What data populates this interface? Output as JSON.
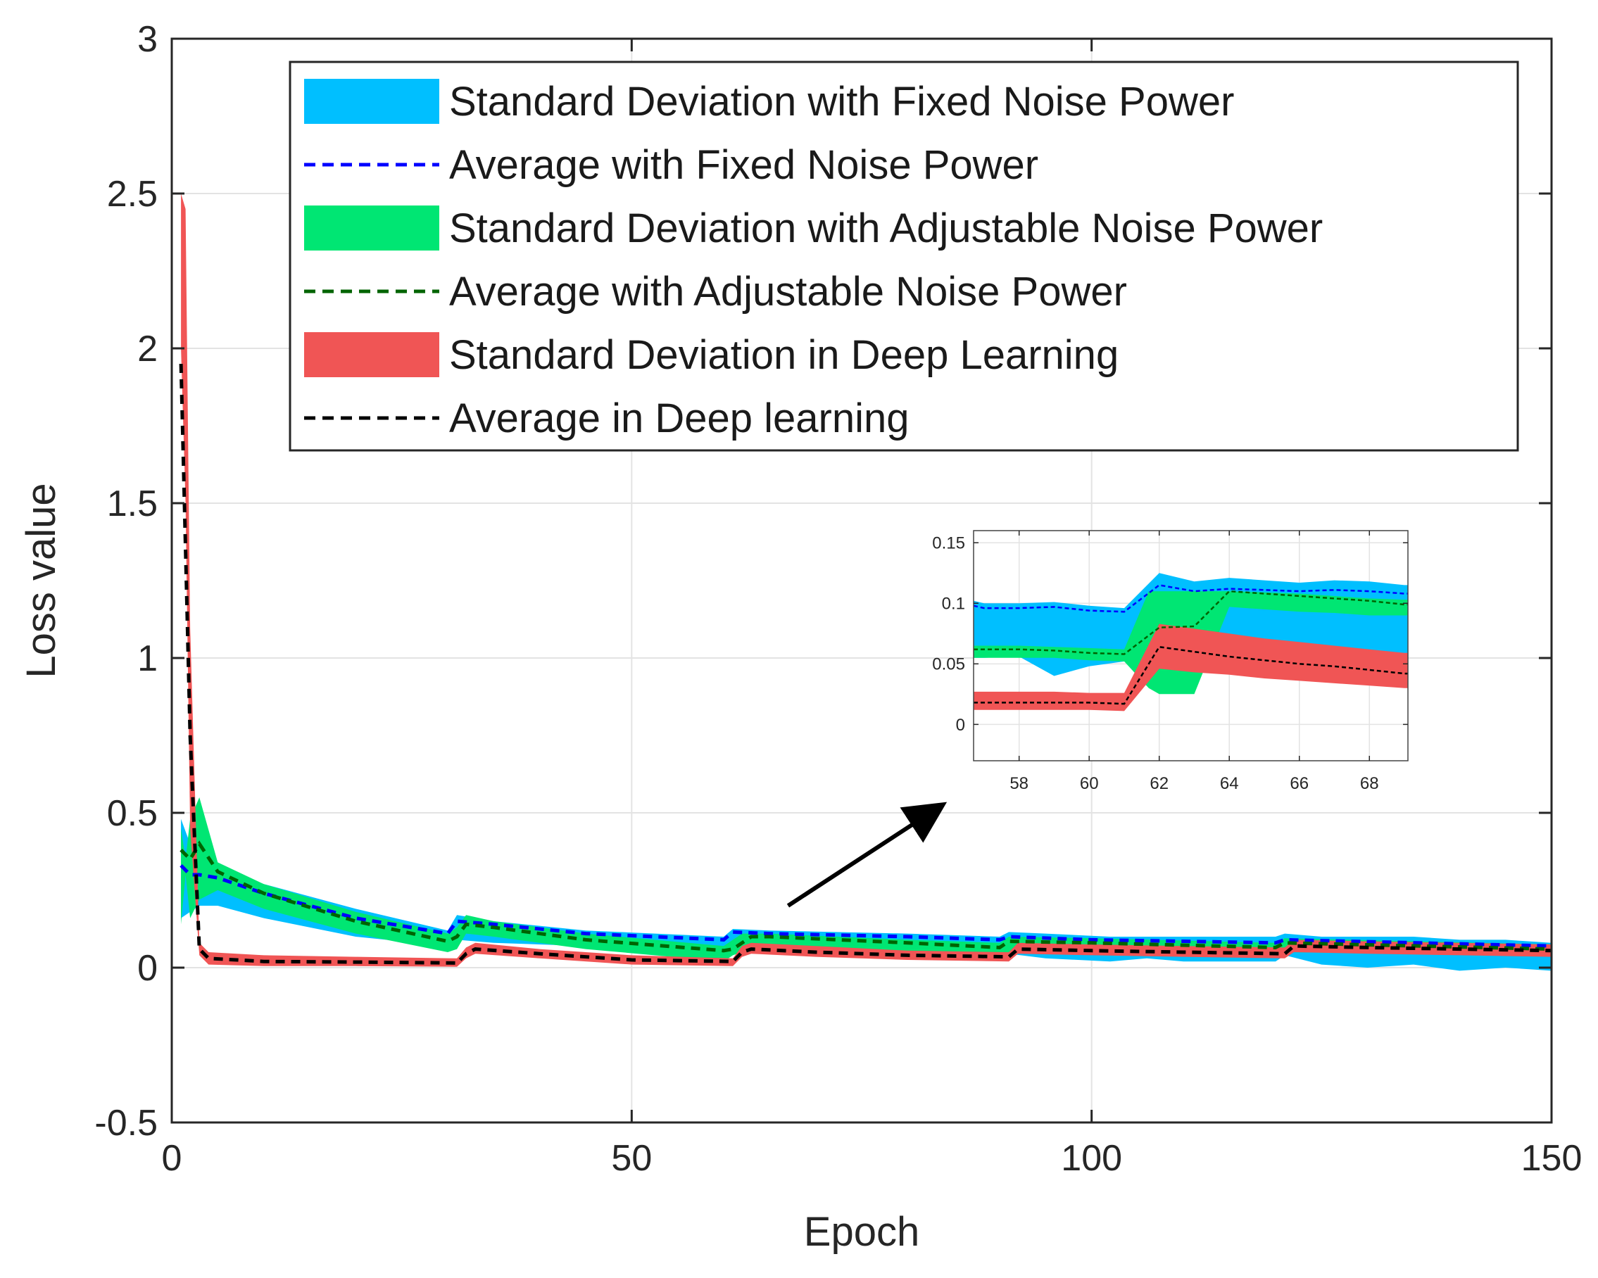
{
  "chart_data": {
    "type": "line",
    "xlabel": "Epoch",
    "ylabel": "Loss value",
    "xlim": [
      0,
      150
    ],
    "ylim": [
      -0.5,
      3
    ],
    "xticks": [
      0,
      50,
      100,
      150
    ],
    "xtick_labels": [
      "0",
      "50",
      "100",
      "150"
    ],
    "yticks": [
      -0.5,
      0,
      0.5,
      1,
      1.5,
      2,
      2.5,
      3
    ],
    "ytick_labels": [
      "-0.5",
      "0",
      "0.5",
      "1",
      "1.5",
      "2",
      "2.5",
      "3"
    ],
    "grid": true,
    "legend_position": "top-right",
    "legend": [
      {
        "label": "Standard Deviation with Fixed Noise Power",
        "kind": "band",
        "color": "#00BFFF"
      },
      {
        "label": "Average with Fixed Noise Power",
        "kind": "dashed",
        "color": "#0000FF"
      },
      {
        "label": "Standard Deviation with Adjustable Noise Power",
        "kind": "band",
        "color": "#00E673"
      },
      {
        "label": "Average with Adjustable Noise Power",
        "kind": "dashed",
        "color": "#006400"
      },
      {
        "label": "Standard Deviation in Deep Learning",
        "kind": "band",
        "color": "#F05555"
      },
      {
        "label": "Average in Deep learning",
        "kind": "dashed",
        "color": "#000000"
      }
    ],
    "series": [
      {
        "name": "Standard Deviation with Fixed Noise Power",
        "kind": "band",
        "color": "#00BFFF",
        "x": [
          1,
          2,
          3,
          5,
          10,
          20,
          30,
          31,
          35,
          45,
          60,
          61,
          65,
          80,
          90,
          91,
          95,
          102,
          106,
          110,
          120,
          121,
          125,
          130,
          135,
          140,
          145,
          150
        ],
        "upper": [
          0.48,
          0.4,
          0.36,
          0.33,
          0.27,
          0.19,
          0.12,
          0.17,
          0.15,
          0.12,
          0.1,
          0.125,
          0.12,
          0.11,
          0.1,
          0.115,
          0.11,
          0.1,
          0.1,
          0.1,
          0.1,
          0.11,
          0.1,
          0.1,
          0.1,
          0.09,
          0.09,
          0.08
        ],
        "lower": [
          0.16,
          0.18,
          0.2,
          0.2,
          0.16,
          0.1,
          0.07,
          0.09,
          0.08,
          0.07,
          0.06,
          0.055,
          0.06,
          0.05,
          0.04,
          0.045,
          0.03,
          0.02,
          0.03,
          0.02,
          0.02,
          0.04,
          0.01,
          0.0,
          0.01,
          -0.01,
          0.0,
          -0.01
        ]
      },
      {
        "name": "Standard Deviation with Adjustable Noise Power",
        "kind": "band",
        "color": "#00E673",
        "x": [
          1,
          1.5,
          2,
          3,
          5,
          10,
          20,
          30,
          31,
          32,
          35,
          45,
          60,
          61,
          62,
          63,
          65,
          80,
          90,
          91,
          100,
          120,
          121,
          150
        ],
        "upper": [
          0.45,
          0.35,
          0.48,
          0.55,
          0.34,
          0.27,
          0.18,
          0.11,
          0.13,
          0.17,
          0.15,
          0.11,
          0.07,
          0.09,
          0.11,
          0.11,
          0.11,
          0.09,
          0.08,
          0.1,
          0.095,
          0.08,
          0.095,
          0.075
        ],
        "lower": [
          0.14,
          0.3,
          0.16,
          0.22,
          0.25,
          0.19,
          0.11,
          0.05,
          0.06,
          0.11,
          0.1,
          0.06,
          0.02,
          0.04,
          0.05,
          0.06,
          0.06,
          0.05,
          0.04,
          0.05,
          0.05,
          0.04,
          0.05,
          0.04
        ]
      },
      {
        "name": "Standard Deviation in Deep Learning",
        "kind": "band",
        "color": "#F05555",
        "x": [
          1,
          1.5,
          2,
          3,
          4,
          10,
          20,
          31,
          32,
          33,
          40,
          50,
          61,
          62,
          63,
          70,
          80,
          91,
          92,
          100,
          110,
          121,
          122,
          130,
          140,
          150
        ],
        "upper": [
          2.5,
          2.45,
          1.1,
          0.08,
          0.05,
          0.04,
          0.035,
          0.03,
          0.065,
          0.08,
          0.06,
          0.04,
          0.03,
          0.07,
          0.08,
          0.07,
          0.055,
          0.05,
          0.08,
          0.075,
          0.07,
          0.065,
          0.09,
          0.085,
          0.08,
          0.075
        ],
        "lower": [
          2.0,
          1.5,
          0.45,
          0.04,
          0.01,
          0.005,
          0.005,
          0.003,
          0.03,
          0.045,
          0.03,
          0.01,
          0.005,
          0.035,
          0.045,
          0.035,
          0.025,
          0.02,
          0.045,
          0.04,
          0.035,
          0.03,
          0.05,
          0.045,
          0.04,
          0.035
        ]
      },
      {
        "name": "Average with Fixed Noise Power",
        "kind": "dashed",
        "color": "#0000FF",
        "x": [
          1,
          2,
          3,
          5,
          10,
          20,
          30,
          31,
          35,
          45,
          60,
          61,
          65,
          80,
          90,
          91,
          100,
          120,
          121,
          150
        ],
        "y": [
          0.33,
          0.3,
          0.3,
          0.29,
          0.24,
          0.16,
          0.11,
          0.15,
          0.14,
          0.11,
          0.09,
          0.115,
          0.11,
          0.1,
          0.09,
          0.1,
          0.09,
          0.08,
          0.09,
          0.07
        ]
      },
      {
        "name": "Average with Adjustable Noise Power",
        "kind": "dashed",
        "color": "#006400",
        "x": [
          1,
          2,
          3,
          5,
          10,
          20,
          30,
          31,
          32,
          35,
          45,
          60,
          61,
          62,
          63,
          65,
          80,
          90,
          91,
          100,
          120,
          121,
          150
        ],
        "y": [
          0.38,
          0.35,
          0.4,
          0.31,
          0.24,
          0.15,
          0.085,
          0.1,
          0.14,
          0.13,
          0.09,
          0.055,
          0.06,
          0.08,
          0.1,
          0.1,
          0.08,
          0.065,
          0.085,
          0.08,
          0.065,
          0.08,
          0.06
        ]
      },
      {
        "name": "Average in Deep learning",
        "kind": "dashed",
        "color": "#000000",
        "x": [
          1,
          2,
          3,
          4,
          10,
          20,
          31,
          32,
          33,
          40,
          50,
          61,
          62,
          63,
          70,
          80,
          91,
          92,
          100,
          110,
          121,
          122,
          130,
          140,
          150
        ],
        "y": [
          1.95,
          0.75,
          0.06,
          0.03,
          0.02,
          0.018,
          0.015,
          0.045,
          0.06,
          0.045,
          0.025,
          0.02,
          0.05,
          0.06,
          0.05,
          0.04,
          0.035,
          0.06,
          0.055,
          0.05,
          0.045,
          0.07,
          0.065,
          0.06,
          0.055
        ]
      }
    ],
    "inset": {
      "xlim": [
        56.7,
        69.1
      ],
      "ylim": [
        -0.03,
        0.16
      ],
      "xticks": [
        58,
        60,
        62,
        64,
        66,
        68
      ],
      "xtick_labels": [
        "58",
        "60",
        "62",
        "64",
        "66",
        "68"
      ],
      "yticks": [
        0,
        0.05,
        0.1,
        0.15
      ],
      "ytick_labels": [
        "0",
        "0.05",
        "0.1",
        "0.15"
      ],
      "series": [
        {
          "name": "Standard Deviation with Fixed Noise Power",
          "kind": "band",
          "color": "#00BFFF",
          "x": [
            56.7,
            57,
            58,
            59,
            60,
            61,
            62,
            63,
            64,
            65,
            66,
            67,
            68,
            69,
            69.1
          ],
          "upper": [
            0.102,
            0.1,
            0.1,
            0.101,
            0.098,
            0.096,
            0.125,
            0.118,
            0.121,
            0.119,
            0.117,
            0.119,
            0.118,
            0.115,
            0.115
          ],
          "lower": [
            0.055,
            0.055,
            0.056,
            0.04,
            0.048,
            0.052,
            0.07,
            0.073,
            0.07,
            0.068,
            0.066,
            0.063,
            0.061,
            0.058,
            0.058
          ]
        },
        {
          "name": "Standard Deviation with Adjustable Noise Power",
          "kind": "band",
          "color": "#00E673",
          "x": [
            56.7,
            57,
            58,
            59,
            60,
            61,
            61.7,
            62,
            63,
            64,
            65,
            66,
            67,
            68,
            69,
            69.1
          ],
          "upper": [
            0.065,
            0.065,
            0.065,
            0.064,
            0.063,
            0.062,
            0.11,
            0.11,
            0.11,
            0.11,
            0.109,
            0.108,
            0.106,
            0.104,
            0.103,
            0.103
          ],
          "lower": [
            0.055,
            0.055,
            0.055,
            0.055,
            0.053,
            0.052,
            0.03,
            0.025,
            0.025,
            0.097,
            0.095,
            0.093,
            0.092,
            0.09,
            0.09,
            0.09
          ]
        },
        {
          "name": "Standard Deviation in Deep Learning",
          "kind": "band",
          "color": "#F05555",
          "x": [
            56.7,
            57,
            58,
            59,
            60,
            61,
            62,
            63,
            64,
            65,
            66,
            67,
            68,
            69,
            69.1
          ],
          "upper": [
            0.027,
            0.027,
            0.027,
            0.027,
            0.026,
            0.026,
            0.083,
            0.079,
            0.075,
            0.071,
            0.068,
            0.065,
            0.062,
            0.059,
            0.059
          ],
          "lower": [
            0.012,
            0.012,
            0.012,
            0.012,
            0.012,
            0.011,
            0.046,
            0.043,
            0.041,
            0.038,
            0.036,
            0.034,
            0.032,
            0.03,
            0.03
          ]
        },
        {
          "name": "Average with Fixed Noise Power",
          "kind": "dashed",
          "color": "#0000FF",
          "x": [
            56.7,
            57,
            58,
            59,
            60,
            61,
            62,
            63,
            64,
            65,
            66,
            67,
            68,
            69,
            69.1
          ],
          "y": [
            0.098,
            0.096,
            0.096,
            0.097,
            0.094,
            0.093,
            0.115,
            0.11,
            0.112,
            0.111,
            0.11,
            0.111,
            0.11,
            0.108,
            0.108
          ]
        },
        {
          "name": "Average with Adjustable Noise Power",
          "kind": "dashed",
          "color": "#006400",
          "x": [
            56.7,
            57,
            58,
            59,
            60,
            61,
            62,
            63,
            64,
            65,
            66,
            67,
            68,
            69,
            69.1
          ],
          "y": [
            0.062,
            0.062,
            0.062,
            0.061,
            0.059,
            0.058,
            0.08,
            0.081,
            0.11,
            0.108,
            0.106,
            0.104,
            0.102,
            0.099,
            0.099
          ]
        },
        {
          "name": "Average in Deep learning",
          "kind": "dashed",
          "color": "#000000",
          "x": [
            56.7,
            57,
            58,
            59,
            60,
            61,
            62,
            63,
            64,
            65,
            66,
            67,
            68,
            69,
            69.1
          ],
          "y": [
            0.018,
            0.018,
            0.018,
            0.018,
            0.018,
            0.017,
            0.064,
            0.06,
            0.056,
            0.053,
            0.05,
            0.048,
            0.045,
            0.042,
            0.042
          ]
        }
      ]
    },
    "annotation_arrow": {
      "from": [
        67,
        0.2
      ],
      "to": [
        83.5,
        0.52
      ]
    }
  }
}
